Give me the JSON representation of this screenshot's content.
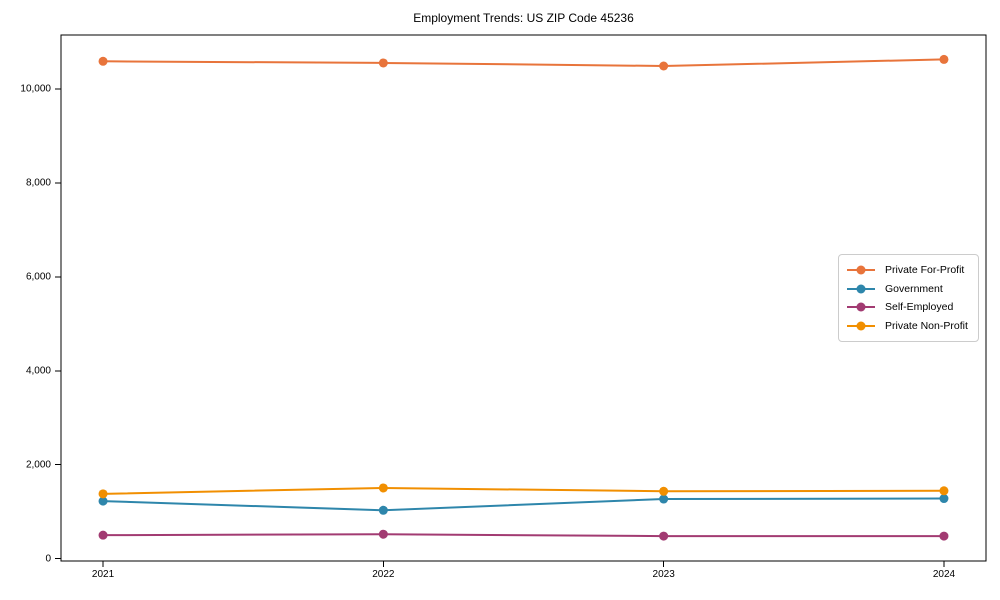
{
  "figure": {
    "title": "Employment Trends: US ZIP Code 45236"
  },
  "chart_data": {
    "type": "line",
    "title": "Employment Trends: US ZIP Code 45236",
    "xlabel": "",
    "ylabel": "",
    "x": [
      "2021",
      "2022",
      "2023",
      "2024"
    ],
    "series": [
      {
        "name": "Private For-Profit",
        "color": "#E8743B",
        "values": [
          10590,
          10555,
          10490,
          10630
        ]
      },
      {
        "name": "Government",
        "color": "#2E86AB",
        "values": [
          1225,
          1030,
          1270,
          1280
        ]
      },
      {
        "name": "Self-Employed",
        "color": "#A23B72",
        "values": [
          500,
          520,
          480,
          480
        ]
      },
      {
        "name": "Private Non-Profit",
        "color": "#F18F01",
        "values": [
          1380,
          1505,
          1435,
          1445
        ]
      }
    ],
    "yticks": [
      0,
      2000,
      4000,
      6000,
      8000,
      10000
    ],
    "ytick_labels": [
      "0",
      "2,000",
      "4,000",
      "6,000",
      "8,000",
      "10,000"
    ],
    "ylim": [
      -50,
      11150
    ],
    "xlim": [
      -0.15,
      3.15
    ],
    "grid": false,
    "legend_position": "center right",
    "marker": "circle",
    "frame_color": "#000000"
  }
}
